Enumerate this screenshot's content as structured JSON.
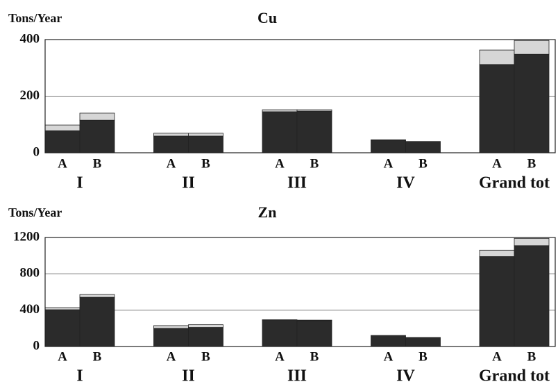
{
  "chart_data": [
    {
      "type": "bar",
      "stacked": true,
      "title": "Cu",
      "y_label": "Tons/Year",
      "groups": [
        "I",
        "II",
        "III",
        "IV",
        "Grand tot"
      ],
      "categories": [
        "A",
        "B",
        "A",
        "B",
        "A",
        "B",
        "A",
        "B",
        "A",
        "B"
      ],
      "series": [
        {
          "color": "#2b2b2b",
          "values": [
            78,
            115,
            59,
            59,
            145,
            147,
            44,
            40,
            312,
            348
          ]
        },
        {
          "color": "#d6d6d6",
          "values": [
            20,
            25,
            10,
            10,
            7,
            5,
            2,
            0,
            51,
            49
          ]
        }
      ],
      "ylim": [
        0,
        400
      ],
      "yticks": [
        0,
        200,
        400
      ],
      "grid": true
    },
    {
      "type": "bar",
      "stacked": true,
      "title": "Zn",
      "y_label": "Tons/Year",
      "groups": [
        "I",
        "II",
        "III",
        "IV",
        "Grand tot"
      ],
      "categories": [
        "A",
        "B",
        "A",
        "B",
        "A",
        "B",
        "A",
        "B",
        "A",
        "B"
      ],
      "series": [
        {
          "color": "#2b2b2b",
          "values": [
            405,
            542,
            200,
            210,
            290,
            285,
            122,
            100,
            990,
            1110
          ]
        },
        {
          "color": "#d6d6d6",
          "values": [
            23,
            30,
            30,
            30,
            5,
            5,
            0,
            0,
            70,
            80
          ]
        }
      ],
      "ylim": [
        0,
        1200
      ],
      "yticks": [
        0,
        400,
        800,
        1200
      ],
      "grid": true
    }
  ]
}
